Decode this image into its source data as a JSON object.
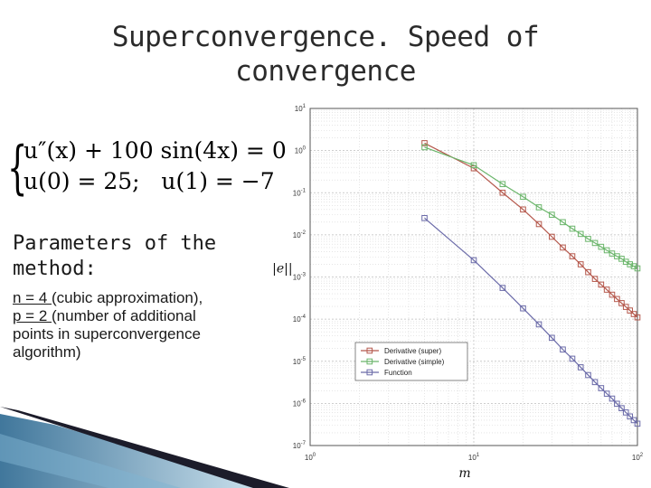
{
  "slide": {
    "title_line1": "Superconvergence. Speed of",
    "title_line2": "convergence",
    "eq_line1": "u″(x) + 100 sin(4x) = 0",
    "eq_line2": "u(0) = 25;   u(1) = −7",
    "params_heading_line1": "Parameters of the",
    "params_heading_line2": "method:",
    "n_value": "n = 4 ",
    "n_desc": "(cubic approximation),",
    "p_value": "p = 2 ",
    "p_desc": "(number of additional",
    "p_desc2": "points in superconvergence",
    "p_desc3": "algorithm)"
  },
  "chart_data": {
    "type": "line",
    "xlabel": "m",
    "ylabel": "||e||",
    "xscale": "log",
    "yscale": "log",
    "xlim": [
      1,
      100
    ],
    "ylim": [
      1e-07,
      10
    ],
    "x_ticks": [
      "10^0",
      "10^1",
      "10^2"
    ],
    "y_ticks": [
      "10^-7",
      "10^-6",
      "10^-5",
      "10^-4",
      "10^-3",
      "10^-2",
      "10^-1",
      "10^0",
      "10^1"
    ],
    "grid": true,
    "legend_position": "bottom-left",
    "series": [
      {
        "name": "Derivative (super)",
        "color": "#b5584c",
        "points": [
          [
            5,
            1.5
          ],
          [
            10,
            0.38
          ],
          [
            15,
            0.1
          ],
          [
            20,
            0.04
          ],
          [
            25,
            0.018
          ],
          [
            30,
            0.009
          ],
          [
            35,
            0.005
          ],
          [
            40,
            0.0031
          ],
          [
            45,
            0.002
          ],
          [
            50,
            0.0013
          ],
          [
            55,
            0.0009
          ],
          [
            60,
            0.00066
          ],
          [
            65,
            0.0005
          ],
          [
            70,
            0.00038
          ],
          [
            75,
            0.0003
          ],
          [
            80,
            0.00024
          ],
          [
            85,
            0.000195
          ],
          [
            90,
            0.00016
          ],
          [
            95,
            0.000132
          ],
          [
            100,
            0.00011
          ]
        ]
      },
      {
        "name": "Derivative (simple)",
        "color": "#6ab56a",
        "points": [
          [
            5,
            1.2
          ],
          [
            10,
            0.45
          ],
          [
            15,
            0.16
          ],
          [
            20,
            0.08
          ],
          [
            25,
            0.045
          ],
          [
            30,
            0.03
          ],
          [
            35,
            0.02
          ],
          [
            40,
            0.014
          ],
          [
            45,
            0.0105
          ],
          [
            50,
            0.008
          ],
          [
            55,
            0.0064
          ],
          [
            60,
            0.0052
          ],
          [
            65,
            0.0043
          ],
          [
            70,
            0.0036
          ],
          [
            75,
            0.0031
          ],
          [
            80,
            0.0027
          ],
          [
            85,
            0.0023
          ],
          [
            90,
            0.002
          ],
          [
            95,
            0.0018
          ],
          [
            100,
            0.0016
          ]
        ]
      },
      {
        "name": "Function",
        "color": "#6a6aa8",
        "points": [
          [
            5,
            0.025
          ],
          [
            10,
            0.0025
          ],
          [
            15,
            0.00055
          ],
          [
            20,
            0.00018
          ],
          [
            25,
            7.5e-05
          ],
          [
            30,
            3.6e-05
          ],
          [
            35,
            1.9e-05
          ],
          [
            40,
            1.15e-05
          ],
          [
            45,
            7.2e-06
          ],
          [
            50,
            4.7e-06
          ],
          [
            55,
            3.2e-06
          ],
          [
            60,
            2.3e-06
          ],
          [
            65,
            1.7e-06
          ],
          [
            70,
            1.3e-06
          ],
          [
            75,
            9.8e-07
          ],
          [
            80,
            7.7e-07
          ],
          [
            85,
            6.1e-07
          ],
          [
            90,
            4.9e-07
          ],
          [
            95,
            4e-07
          ],
          [
            100,
            3.3e-07
          ]
        ]
      }
    ]
  }
}
